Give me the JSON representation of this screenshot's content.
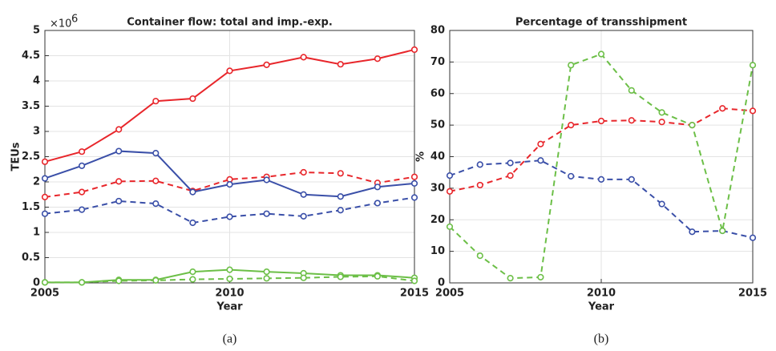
{
  "charts": [
    {
      "chart_data": {
        "type": "line",
        "title": "Container flow: total and imp.-exp.",
        "x_label": "Year",
        "y_label": "TEUs",
        "y_multiplier": "×10",
        "y_multiplier_exponent": "6",
        "caption": "(a)",
        "x": [
          2005,
          2006,
          2007,
          2008,
          2009,
          2010,
          2011,
          2012,
          2013,
          2014,
          2015
        ],
        "xlim": [
          2005,
          2015
        ],
        "xticks": [
          2005,
          2010,
          2015
        ],
        "ylim": [
          0,
          5
        ],
        "yticks": [
          0,
          0.5,
          1,
          1.5,
          2,
          2.5,
          3,
          3.5,
          4,
          4.5,
          5
        ],
        "grid": true,
        "series": [
          {
            "color": "#e8262b",
            "style": "solid",
            "values": [
              2.4,
              2.6,
              3.04,
              3.6,
              3.65,
              4.2,
              4.32,
              4.47,
              4.33,
              4.44,
              4.62
            ]
          },
          {
            "color": "#e8262b",
            "style": "dashed",
            "values": [
              1.7,
              1.8,
              2.01,
              2.02,
              1.82,
              2.05,
              2.1,
              2.19,
              2.17,
              1.98,
              2.1
            ]
          },
          {
            "color": "#3a4fa8",
            "style": "solid",
            "values": [
              2.07,
              2.32,
              2.61,
              2.57,
              1.8,
              1.95,
              2.04,
              1.75,
              1.71,
              1.9,
              1.97
            ]
          },
          {
            "color": "#3a4fa8",
            "style": "dashed",
            "values": [
              1.37,
              1.45,
              1.62,
              1.57,
              1.19,
              1.31,
              1.37,
              1.32,
              1.44,
              1.58,
              1.69
            ]
          },
          {
            "color": "#6cbf47",
            "style": "solid",
            "values": [
              0.01,
              0.01,
              0.06,
              0.06,
              0.22,
              0.26,
              0.22,
              0.19,
              0.15,
              0.15,
              0.1
            ]
          },
          {
            "color": "#6cbf47",
            "style": "dashed",
            "values": [
              0.01,
              0.01,
              0.04,
              0.05,
              0.07,
              0.08,
              0.09,
              0.1,
              0.12,
              0.13,
              0.04
            ]
          }
        ]
      }
    },
    {
      "chart_data": {
        "type": "line",
        "title": "Percentage of transshipment",
        "x_label": "Year",
        "y_label": "%",
        "caption": "(b)",
        "x": [
          2005,
          2006,
          2007,
          2008,
          2009,
          2010,
          2011,
          2012,
          2013,
          2014,
          2015
        ],
        "xlim": [
          2005,
          2015
        ],
        "xticks": [
          2005,
          2010,
          2015
        ],
        "ylim": [
          0,
          80
        ],
        "yticks": [
          0,
          10,
          20,
          30,
          40,
          50,
          60,
          70,
          80
        ],
        "grid": true,
        "series": [
          {
            "color": "#e8262b",
            "style": "dashed",
            "values": [
              29,
              31,
              34,
              44,
              50,
              51.3,
              51.5,
              51,
              50,
              55.3,
              54.5
            ]
          },
          {
            "color": "#3a4fa8",
            "style": "dashed",
            "values": [
              34,
              37.5,
              38,
              38.8,
              33.8,
              32.8,
              32.8,
              25,
              16.2,
              16.5,
              14.3
            ]
          },
          {
            "color": "#6cbf47",
            "style": "dashed",
            "values": [
              17.8,
              8.6,
              1.5,
              1.8,
              69,
              72.5,
              61,
              54,
              50,
              16.5,
              69
            ]
          }
        ]
      }
    }
  ]
}
